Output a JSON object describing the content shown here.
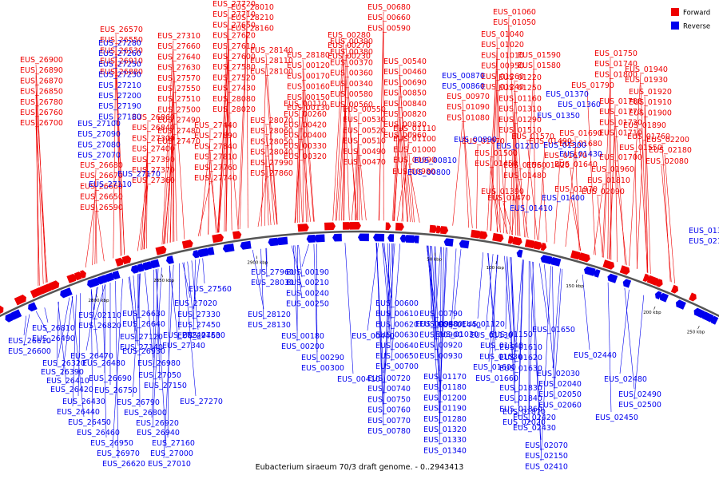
{
  "caption": "Eubacterium siraeum 70/3 draft genome. - 0..2943413",
  "legend": [
    {
      "label": "Forward",
      "color": "#ee0000"
    },
    {
      "label": "Reverse",
      "color": "#0000ee"
    }
  ],
  "colors": {
    "forward": "#ee0000",
    "reverse": "#0000ee",
    "backbone": "#555555"
  },
  "ticks": [
    "2800 kbp",
    "2850 kbp",
    "2900 kbp",
    "50 kbp",
    "100 kbp",
    "150 kbp",
    "200 kbp",
    "250 kbp"
  ],
  "forward_labels": [
    "EUS_26900",
    "EUS_26890",
    "EUS_26870",
    "EUS_26850",
    "EUS_26780",
    "EUS_26760",
    "EUS_26700",
    "EUS_26680",
    "EUS_26670",
    "EUS_26660",
    "EUS_26650",
    "EUS_26590",
    "EUS_26570",
    "EUS_26550",
    "EUS_26530",
    "EUS_26910",
    "EUS_26880",
    "EUS_26860",
    "EUS_26840",
    "EUS_27300",
    "EUS_27400",
    "EUS_27390",
    "EUS_27370",
    "EUS_27360",
    "EUS_27310",
    "EUS_27660",
    "EUS_27640",
    "EUS_27630",
    "EUS_27570",
    "EUS_27550",
    "EUS_27510",
    "EUS_27500",
    "EUS_27490",
    "EUS_27480",
    "EUS_27470",
    "EUS_27440",
    "EUS_27890",
    "EUS_27840",
    "EUS_27810",
    "EUS_27760",
    "EUS_27740",
    "EUS_27720",
    "EUS_27710",
    "EUS_27650",
    "EUS_27620",
    "EUS_27610",
    "EUS_27600",
    "EUS_27580",
    "EUS_27520",
    "EUS_27430",
    "EUS_28080",
    "EUS_28020",
    "EUS_28010",
    "EUS_28210",
    "EUS_28160",
    "EUS_28140",
    "EUS_28110",
    "EUS_28100",
    "EUS_28070",
    "EUS_28060",
    "EUS_28050",
    "EUS_28040",
    "EUS_27990",
    "EUS_27860",
    "EUS_28180",
    "EUS_00120",
    "EUS_00170",
    "EUS_00160",
    "EUS_00150",
    "EUS_00130",
    "EUS_00110",
    "EUS_00260",
    "EUS_00420",
    "EUS_00400",
    "EUS_00330",
    "EUS_00320",
    "EUS_00280",
    "EUS_00270",
    "EUS_00230",
    "EUS_00390",
    "EUS_00380",
    "EUS_00370",
    "EUS_00360",
    "EUS_00340",
    "EUS_00580",
    "EUS_00560",
    "EUS_00550",
    "EUS_00530",
    "EUS_00520",
    "EUS_00510",
    "EUS_00490",
    "EUS_00470",
    "EUS_00680",
    "EUS_00660",
    "EUS_00590",
    "EUS_00540",
    "EUS_00460",
    "EUS_00690",
    "EUS_00850",
    "EUS_00840",
    "EUS_00820",
    "EUS_00830",
    "EUS_00960",
    "EUS_01110",
    "EUS_01100",
    "EUS_01000",
    "EUS_00990",
    "EUS_00980",
    "EUS_00970",
    "EUS_01090",
    "EUS_01080",
    "EUS_01070",
    "EUS_01060",
    "EUS_01050",
    "EUS_01040",
    "EUS_01020",
    "EUS_01010",
    "EUS_00950",
    "EUS_01260",
    "EUS_01240",
    "EUS_01220",
    "EUS_01250",
    "EUS_01160",
    "EUS_01310",
    "EUS_01290",
    "EUS_01510",
    "EUS_01500",
    "EUS_01450",
    "EUS_01390",
    "EUS_01590",
    "EUS_01580",
    "EUS_01570",
    "EUS_01560",
    "EUS_01480",
    "EUS_01470",
    "EUS_01490",
    "EUS_01420",
    "EUS_01750",
    "EUS_01740",
    "EUS_01800",
    "EUS_01790",
    "EUS_01780",
    "EUS_01770",
    "EUS_01730",
    "EUS_01710",
    "EUS_01690",
    "EUS_01680",
    "EUS_01670",
    "EUS_01640",
    "EUS_01970",
    "EUS_01940",
    "EUS_01930",
    "EUS_01920",
    "EUS_01910",
    "EUS_01900",
    "EUS_01890",
    "EUS_01760",
    "EUS_01550",
    "EUS_01700",
    "EUS_01960",
    "EUS_01810",
    "EUS_02090",
    "EUS_02200",
    "EUS_02180",
    "EUS_02080"
  ],
  "reverse_labels": [
    "EUS_27280",
    "EUS_27260",
    "EUS_27250",
    "EUS_27230",
    "EUS_27210",
    "EUS_27200",
    "EUS_27190",
    "EUS_27180",
    "EUS_27100",
    "EUS_27090",
    "EUS_27080",
    "EUS_27070",
    "EUS_27170",
    "EUS_27110",
    "EUS_00870",
    "EUS_00860",
    "EUS_00890",
    "EUS_00810",
    "EUS_00800",
    "EUS_01370",
    "EUS_01360",
    "EUS_01350",
    "EUS_01210",
    "EUS_01300",
    "EUS_01430",
    "EUS_01400",
    "EUS_01410",
    "EUS_01380",
    "EUS_02120",
    "EUS_02110",
    "EUS_26820",
    "EUS_26810",
    "EUS_26490",
    "EUS_26610",
    "EUS_26600",
    "EUS_26320",
    "EUS_26390",
    "EUS_26410",
    "EUS_26420",
    "EUS_26430",
    "EUS_26440",
    "EUS_26450",
    "EUS_26460",
    "EUS_26470",
    "EUS_26480",
    "EUS_26690",
    "EUS_26750",
    "EUS_26790",
    "EUS_26800",
    "EUS_26920",
    "EUS_26940",
    "EUS_26950",
    "EUS_26970",
    "EUS_26620",
    "EUS_26630",
    "EUS_26640",
    "EUS_27120",
    "EUS_27140",
    "EUS_26930",
    "EUS_26980",
    "EUS_27050",
    "EUS_27150",
    "EUS_27160",
    "EUS_27000",
    "EUS_27010",
    "EUS_27020",
    "EUS_27330",
    "EUS_27450",
    "EUS_27460",
    "EUS_27240",
    "EUS_27340",
    "EUS_27530",
    "EUS_27270",
    "EUS_27560",
    "EUS_27960",
    "EUS_28030",
    "EUS_28120",
    "EUS_28130",
    "EUS_00190",
    "EUS_00210",
    "EUS_00240",
    "EUS_00250",
    "EUS_00180",
    "EUS_00200",
    "EUS_00290",
    "EUS_00300",
    "EUS_00410",
    "EUS_00440",
    "EUS_00600",
    "EUS_00610",
    "EUS_00620",
    "EUS_00630",
    "EUS_00640",
    "EUS_00650",
    "EUS_00700",
    "EUS_00720",
    "EUS_00740",
    "EUS_00750",
    "EUS_00760",
    "EUS_00770",
    "EUS_00780",
    "EUS_00790",
    "EUS_00880",
    "EUS_00900",
    "EUS_00920",
    "EUS_00930",
    "EUS_00940",
    "EUS_01030",
    "EUS_01120",
    "EUS_01130",
    "EUS_01140",
    "EUS_01150",
    "EUS_01170",
    "EUS_01180",
    "EUS_01200",
    "EUS_01190",
    "EUS_01280",
    "EUS_01320",
    "EUS_01330",
    "EUS_01340",
    "EUS_01440",
    "EUS_01530",
    "EUS_01600",
    "EUS_01610",
    "EUS_01620",
    "EUS_01630",
    "EUS_01650",
    "EUS_01660",
    "EUS_01830",
    "EUS_01840",
    "EUS_01860",
    "EUS_01870",
    "EUS_02020",
    "EUS_02030",
    "EUS_02040",
    "EUS_02050",
    "EUS_02060",
    "EUS_02070",
    "EUS_02150",
    "EUS_02410",
    "EUS_02420",
    "EUS_02430",
    "EUS_02440",
    "EUS_02450",
    "EUS_02480",
    "EUS_02490",
    "EUS_02500"
  ]
}
